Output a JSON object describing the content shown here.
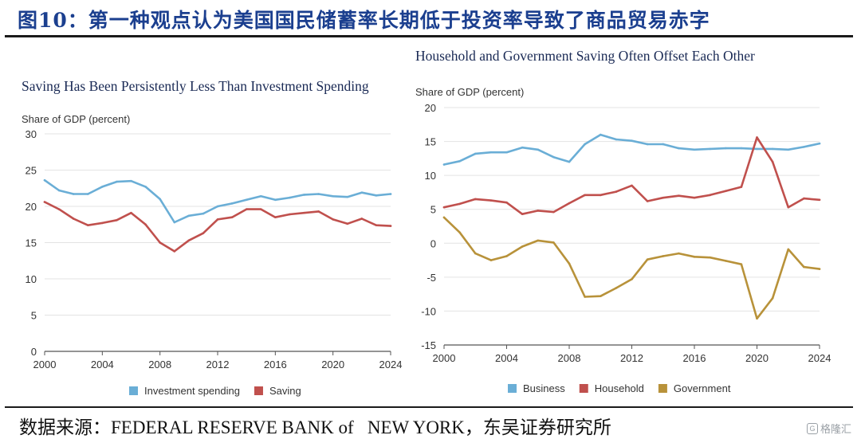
{
  "header": {
    "title": "图10：第一种观点认为美国国民储蓄率长期低于投资率导致了商品贸易赤字"
  },
  "footer": {
    "source": "数据来源：FEDERAL RESERVE BANK of   NEW YORK，东吴证券研究所",
    "watermark": "格隆汇"
  },
  "colors": {
    "blue": "#6aaed6",
    "red": "#c0504d",
    "gold": "#b8923a",
    "title": "#1b3f8f"
  },
  "chart_data": [
    {
      "type": "line",
      "title": "Saving Has Been Persistently Less Than Investment Spending",
      "ylabel": "Share of GDP (percent)",
      "xlabel": "",
      "ylim": [
        0,
        30
      ],
      "yticks": [
        0,
        5,
        10,
        15,
        20,
        25,
        30
      ],
      "xlim": [
        2000,
        2024
      ],
      "xticks": [
        2000,
        2004,
        2008,
        2012,
        2016,
        2020,
        2024
      ],
      "x": [
        2000,
        2001,
        2002,
        2003,
        2004,
        2005,
        2006,
        2007,
        2008,
        2009,
        2010,
        2011,
        2012,
        2013,
        2014,
        2015,
        2016,
        2017,
        2018,
        2019,
        2020,
        2021,
        2022,
        2023,
        2024
      ],
      "series": [
        {
          "name": "Investment spending",
          "color": "#6aaed6",
          "values": [
            23.6,
            22.2,
            21.7,
            21.7,
            22.7,
            23.4,
            23.5,
            22.7,
            21.0,
            17.8,
            18.7,
            19.0,
            20.0,
            20.4,
            20.9,
            21.4,
            20.9,
            21.2,
            21.6,
            21.7,
            21.4,
            21.3,
            21.9,
            21.5,
            21.7
          ]
        },
        {
          "name": "Saving",
          "color": "#c0504d",
          "values": [
            20.6,
            19.6,
            18.3,
            17.4,
            17.7,
            18.1,
            19.1,
            17.5,
            15.0,
            13.8,
            15.3,
            16.3,
            18.2,
            18.5,
            19.6,
            19.6,
            18.5,
            18.9,
            19.1,
            19.3,
            18.2,
            17.6,
            18.3,
            17.4,
            17.3
          ]
        }
      ],
      "legend": "bottom"
    },
    {
      "type": "line",
      "title": "Household and Government Saving Often Offset Each Other",
      "ylabel": "Share of GDP (percent)",
      "xlabel": "",
      "ylim": [
        -15,
        20
      ],
      "yticks": [
        -15,
        -10,
        -5,
        0,
        5,
        10,
        15,
        20
      ],
      "xlim": [
        2000,
        2024
      ],
      "xticks": [
        2000,
        2004,
        2008,
        2012,
        2016,
        2020,
        2024
      ],
      "x": [
        2000,
        2001,
        2002,
        2003,
        2004,
        2005,
        2006,
        2007,
        2008,
        2009,
        2010,
        2011,
        2012,
        2013,
        2014,
        2015,
        2016,
        2017,
        2018,
        2019,
        2020,
        2021,
        2022,
        2023,
        2024
      ],
      "series": [
        {
          "name": "Business",
          "color": "#6aaed6",
          "values": [
            11.6,
            12.1,
            13.2,
            13.4,
            13.4,
            14.1,
            13.8,
            12.7,
            12.0,
            14.6,
            16.0,
            15.3,
            15.1,
            14.6,
            14.6,
            14.0,
            13.8,
            13.9,
            14.0,
            14.0,
            13.9,
            13.9,
            13.8,
            14.2,
            14.7
          ]
        },
        {
          "name": "Household",
          "color": "#c0504d",
          "values": [
            5.3,
            5.8,
            6.5,
            6.3,
            6.0,
            4.3,
            4.8,
            4.6,
            5.9,
            7.1,
            7.1,
            7.6,
            8.5,
            6.2,
            6.7,
            7.0,
            6.7,
            7.1,
            7.7,
            8.3,
            15.6,
            12.0,
            5.3,
            6.6,
            6.4
          ]
        },
        {
          "name": "Government",
          "color": "#b8923a",
          "values": [
            3.8,
            1.6,
            -1.5,
            -2.5,
            -1.9,
            -0.5,
            0.4,
            0.1,
            -3.0,
            -7.9,
            -7.8,
            -6.6,
            -5.3,
            -2.4,
            -1.9,
            -1.5,
            -2.0,
            -2.1,
            -2.6,
            -3.1,
            -11.1,
            -8.1,
            -0.9,
            -3.5,
            -3.8
          ]
        }
      ],
      "legend": "bottom"
    }
  ]
}
